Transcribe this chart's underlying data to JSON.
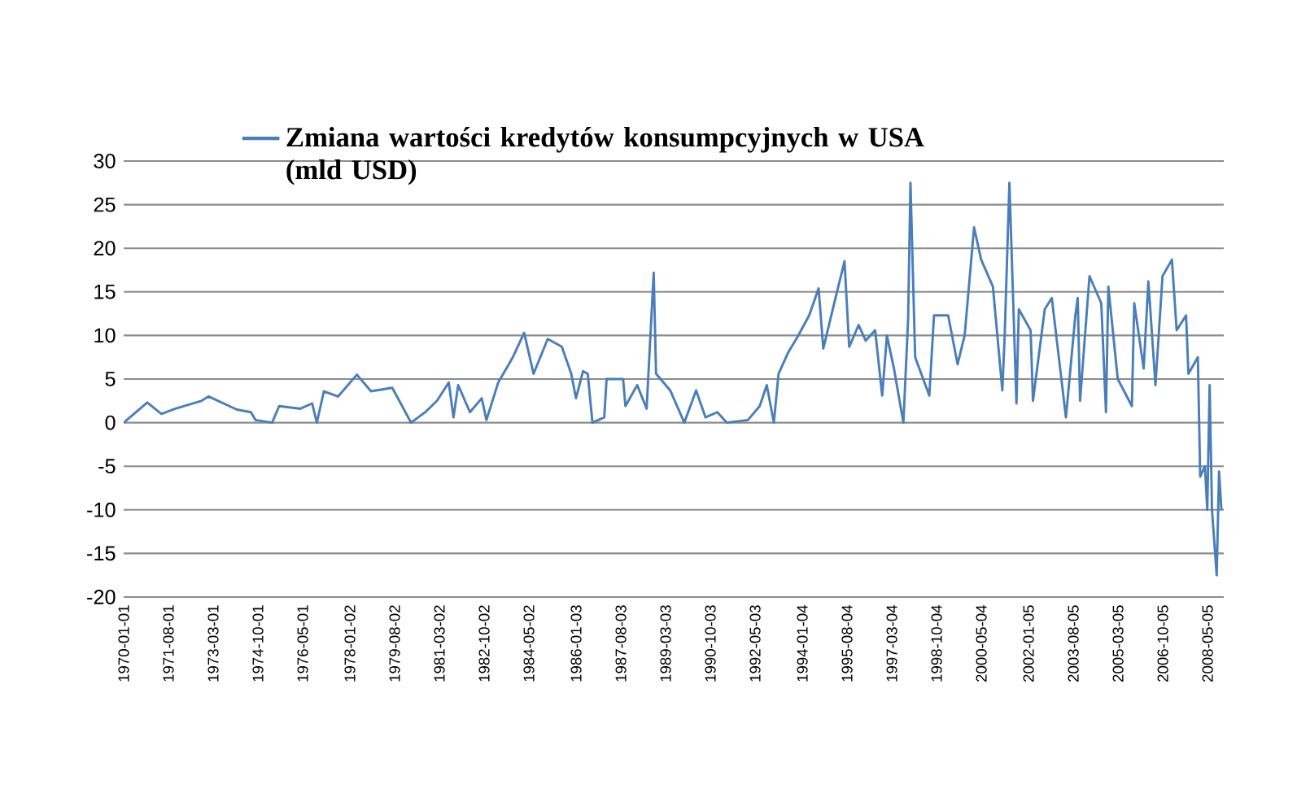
{
  "chart_data": {
    "type": "line",
    "x": [
      "1970-01",
      "1970-11",
      "1971-05",
      "1971-11",
      "1972-10",
      "1973-01",
      "1974-01",
      "1974-07",
      "1974-09",
      "1975-04",
      "1975-07",
      "1976-04",
      "1976-09",
      "1976-11",
      "1977-02",
      "1977-08",
      "1978-04",
      "1978-10",
      "1979-07",
      "1979-10",
      "1980-03",
      "1980-09",
      "1981-02",
      "1981-07",
      "1981-09",
      "1981-11",
      "1982-04",
      "1982-09",
      "1982-11",
      "1983-04",
      "1983-10",
      "1984-03",
      "1984-07",
      "1985-01",
      "1985-07",
      "1985-11",
      "1986-01",
      "1986-04",
      "1986-06",
      "1986-08",
      "1987-01",
      "1987-02",
      "1987-09",
      "1987-10",
      "1988-03",
      "1988-07",
      "1988-10",
      "1988-11",
      "1989-05",
      "1989-11",
      "1990-04",
      "1990-08",
      "1991-01",
      "1991-05",
      "1992-02",
      "1992-07",
      "1992-10",
      "1993-01",
      "1993-03",
      "1993-07",
      "1993-11",
      "1994-04",
      "1994-08",
      "1994-10",
      "1995-03",
      "1995-07",
      "1995-09",
      "1996-01",
      "1996-04",
      "1996-08",
      "1996-11",
      "1997-01",
      "1997-04",
      "1997-08",
      "1997-10",
      "1997-11",
      "1998-01",
      "1998-07",
      "1998-09",
      "1999-03",
      "1999-07",
      "1999-10",
      "2000-02",
      "2000-05",
      "2000-10",
      "2001-02",
      "2001-03",
      "2001-05",
      "2001-08",
      "2001-09",
      "2002-02",
      "2002-03",
      "2002-08",
      "2002-11",
      "2003-05",
      "2003-09",
      "2003-10",
      "2003-11",
      "2004-03",
      "2004-08",
      "2004-10",
      "2004-11",
      "2005-03",
      "2005-09",
      "2005-10",
      "2006-02",
      "2006-04",
      "2006-07",
      "2006-10",
      "2007-02",
      "2007-04",
      "2007-08",
      "2007-09",
      "2008-01",
      "2008-02",
      "2008-04",
      "2008-05",
      "2008-06",
      "2008-07",
      "2008-09",
      "2008-10",
      "2008-11"
    ],
    "series": [
      {
        "name": "Zmiana wartości kredytów konsumpcyjnych  w USA (mld USD)",
        "color": "#4a7ebb",
        "values": [
          0,
          2.3,
          1,
          1.6,
          2.5,
          3,
          1.5,
          1.2,
          0.3,
          0,
          1.9,
          1.6,
          2.2,
          0,
          3.6,
          3,
          5.5,
          3.6,
          4,
          2.5,
          0,
          1.2,
          2.5,
          4.6,
          0.6,
          4.3,
          1.2,
          2.8,
          0.3,
          4.6,
          7.4,
          10.3,
          5.6,
          9.6,
          8.7,
          5.6,
          2.8,
          5.9,
          5.6,
          0,
          0.6,
          5,
          5,
          1.9,
          4.3,
          1.6,
          17.2,
          5.6,
          3.7,
          0,
          3.7,
          0.6,
          1.2,
          0,
          0.3,
          1.9,
          4.3,
          0,
          5.6,
          8,
          9.8,
          12.3,
          15.4,
          8.5,
          14.1,
          18.5,
          8.7,
          11.2,
          9.4,
          10.6,
          3.1,
          10,
          6.2,
          0,
          11.8,
          27.5,
          7.5,
          3.1,
          12.3,
          12.3,
          6.7,
          10,
          22.4,
          18.7,
          15.6,
          3.7,
          10,
          27.5,
          2.2,
          13,
          10.6,
          2.5,
          13,
          14.3,
          0.6,
          12.3,
          14.3,
          2.5,
          16.8,
          13.7,
          1.2,
          15.6,
          5,
          1.9,
          13.7,
          6.2,
          16.2,
          4.3,
          16.8,
          18.7,
          10.6,
          12.3,
          5.6,
          7.5,
          -6.2,
          -5,
          -10,
          4.3,
          -10,
          -17.5,
          -5.6,
          -10
        ]
      }
    ],
    "xlim": [
      "1970-01",
      "2008-12"
    ],
    "xticks": [
      {
        "value": "1970-01-01",
        "label": "1970-01-01"
      },
      {
        "value": "1971-08-01",
        "label": "1971-08-01"
      },
      {
        "value": "1973-03-01",
        "label": "1973-03-01"
      },
      {
        "value": "1974-10-01",
        "label": "1974-10-01"
      },
      {
        "value": "1976-05-01",
        "label": "1976-05-01"
      },
      {
        "value": "1978-01-02",
        "label": "1978-01-02"
      },
      {
        "value": "1979-08-02",
        "label": "1979-08-02"
      },
      {
        "value": "1981-03-02",
        "label": "1981-03-02"
      },
      {
        "value": "1982-10-02",
        "label": "1982-10-02"
      },
      {
        "value": "1984-05-02",
        "label": "1984-05-02"
      },
      {
        "value": "1986-01-03",
        "label": "1986-01-03"
      },
      {
        "value": "1987-08-03",
        "label": "1987-08-03"
      },
      {
        "value": "1989-03-03",
        "label": "1989-03-03"
      },
      {
        "value": "1990-10-03",
        "label": "1990-10-03"
      },
      {
        "value": "1992-05-03",
        "label": "1992-05-03"
      },
      {
        "value": "1994-01-04",
        "label": "1994-01-04"
      },
      {
        "value": "1995-08-04",
        "label": "1995-08-04"
      },
      {
        "value": "1997-03-04",
        "label": "1997-03-04"
      },
      {
        "value": "1998-10-04",
        "label": "1998-10-04"
      },
      {
        "value": "2000-05-04",
        "label": "2000-05-04"
      },
      {
        "value": "2002-01-05",
        "label": "2002-01-05"
      },
      {
        "value": "2003-08-05",
        "label": "2003-08-05"
      },
      {
        "value": "2005-03-05",
        "label": "2005-03-05"
      },
      {
        "value": "2006-10-05",
        "label": "2006-10-05"
      },
      {
        "value": "2008-05-05",
        "label": "2008-05-05"
      }
    ],
    "ylim": [
      -20,
      30
    ],
    "yticks": [
      -20,
      -15,
      -10,
      -5,
      0,
      5,
      10,
      15,
      20,
      25,
      30
    ],
    "grid": "y",
    "legend": "top",
    "marker": "none"
  }
}
